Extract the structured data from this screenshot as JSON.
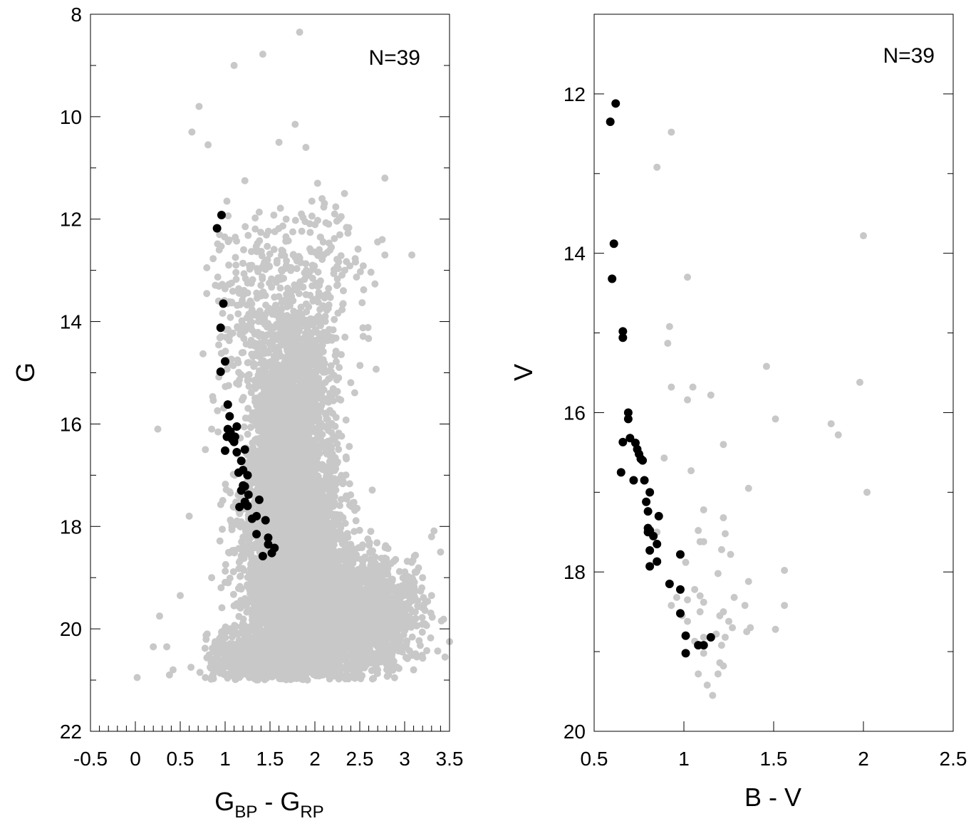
{
  "chart_data": [
    {
      "type": "scatter",
      "title": "",
      "xlabel": "G",
      "xlabel_sub1": "BP",
      "xlabel_mid": " - ",
      "xlabel_main2": "G",
      "xlabel_sub2": "RP",
      "ylabel": "G",
      "xlim": [
        -0.5,
        3.5
      ],
      "ylim": [
        22,
        8
      ],
      "y_inverted": true,
      "x_major_ticks": [
        -0.5,
        0,
        0.5,
        1,
        1.5,
        2,
        2.5,
        3,
        3.5
      ],
      "x_tick_labels": [
        "-0.5",
        "0",
        "0.5",
        "1",
        "1.5",
        "2",
        "2.5",
        "3",
        "3.5"
      ],
      "x_minor_step": 0.1,
      "y_major_ticks": [
        8,
        10,
        12,
        14,
        16,
        18,
        20,
        22
      ],
      "y_tick_labels": [
        "8",
        "10",
        "12",
        "14",
        "16",
        "18",
        "20",
        "22"
      ],
      "y_minor_ticks": [
        9,
        11,
        13,
        15,
        17,
        19,
        21
      ],
      "annotation": "N=39",
      "grid": false,
      "field_color": "#c8c8c8",
      "member_color": "#000000",
      "field_stars_sample": [
        [
          1.83,
          8.35
        ],
        [
          1.42,
          8.78
        ],
        [
          1.1,
          9.0
        ],
        [
          0.71,
          9.8
        ],
        [
          0.63,
          10.3
        ],
        [
          0.81,
          10.55
        ],
        [
          1.78,
          10.15
        ],
        [
          1.9,
          10.6
        ],
        [
          1.6,
          10.5
        ],
        [
          1.22,
          11.25
        ],
        [
          2.03,
          11.3
        ],
        [
          2.33,
          11.5
        ],
        [
          2.78,
          11.2
        ],
        [
          2.08,
          11.6
        ],
        [
          2.22,
          11.9
        ],
        [
          2.27,
          12.0
        ],
        [
          1.85,
          11.9
        ],
        [
          1.68,
          12.0
        ],
        [
          1.02,
          11.65
        ],
        [
          3.08,
          12.7
        ],
        [
          2.78,
          12.7
        ],
        [
          2.75,
          12.4
        ],
        [
          0.25,
          16.1
        ],
        [
          0.6,
          17.8
        ],
        [
          0.5,
          19.35
        ],
        [
          0.27,
          19.75
        ],
        [
          0.2,
          20.35
        ],
        [
          0.35,
          20.35
        ],
        [
          0.42,
          20.8
        ],
        [
          0.38,
          20.9
        ],
        [
          0.02,
          20.95
        ],
        [
          3.3,
          19.35
        ],
        [
          3.5,
          20.25
        ],
        [
          3.45,
          20.55
        ],
        [
          3.4,
          18.5
        ],
        [
          3.3,
          18.2
        ],
        [
          3.2,
          19.0
        ],
        [
          3.05,
          19.5
        ],
        [
          2.93,
          19.4
        ],
        [
          2.62,
          20.0
        ],
        [
          2.82,
          20.9
        ],
        [
          3.1,
          20.8
        ],
        [
          0.8,
          20.1
        ],
        [
          0.62,
          20.75
        ],
        [
          0.72,
          20.85
        ],
        [
          0.78,
          20.95
        ],
        [
          1.05,
          20.0
        ],
        [
          1.3,
          19.7
        ],
        [
          0.85,
          19.0
        ],
        [
          0.78,
          16.5
        ],
        [
          0.85,
          16.1
        ]
      ],
      "members": [
        [
          0.96,
          11.92
        ],
        [
          0.91,
          12.18
        ],
        [
          0.98,
          13.65
        ],
        [
          0.95,
          14.12
        ],
        [
          1.0,
          14.78
        ],
        [
          0.95,
          14.98
        ],
        [
          1.03,
          15.62
        ],
        [
          1.05,
          15.85
        ],
        [
          1.13,
          16.05
        ],
        [
          1.03,
          16.1
        ],
        [
          1.06,
          16.15
        ],
        [
          1.11,
          16.25
        ],
        [
          1.1,
          16.35
        ],
        [
          1.13,
          16.55
        ],
        [
          1.0,
          16.52
        ],
        [
          1.22,
          16.5
        ],
        [
          1.18,
          16.72
        ],
        [
          1.2,
          16.9
        ],
        [
          1.25,
          17.0
        ],
        [
          1.2,
          17.2
        ],
        [
          1.22,
          17.22
        ],
        [
          1.18,
          17.3
        ],
        [
          1.26,
          17.38
        ],
        [
          1.22,
          17.52
        ],
        [
          1.16,
          17.62
        ],
        [
          1.38,
          17.48
        ],
        [
          1.35,
          17.8
        ],
        [
          1.45,
          17.88
        ],
        [
          1.35,
          18.15
        ],
        [
          1.48,
          18.35
        ],
        [
          1.55,
          18.42
        ],
        [
          1.42,
          18.58
        ],
        [
          1.52,
          18.52
        ],
        [
          1.48,
          18.22
        ],
        [
          1.3,
          17.85
        ],
        [
          1.15,
          16.95
        ],
        [
          1.25,
          17.6
        ],
        [
          1.02,
          16.25
        ],
        [
          1.08,
          16.3
        ]
      ]
    },
    {
      "type": "scatter",
      "title": "",
      "xlabel": "B - V",
      "ylabel": "V",
      "xlim": [
        0.5,
        2.5
      ],
      "ylim": [
        20,
        11
      ],
      "y_inverted": true,
      "x_major_ticks": [
        0.5,
        1,
        1.5,
        2,
        2.5
      ],
      "x_tick_labels": [
        "0.5",
        "1",
        "1.5",
        "2",
        "2.5"
      ],
      "y_major_ticks": [
        12,
        14,
        16,
        18,
        20
      ],
      "y_tick_labels": [
        "12",
        "14",
        "16",
        "18",
        "20"
      ],
      "y_minor_ticks": [
        11,
        13,
        15,
        17,
        19
      ],
      "annotation": "N=39",
      "grid": false,
      "field_color": "#c8c8c8",
      "member_color": "#000000",
      "field_stars": [
        [
          0.93,
          12.48
        ],
        [
          0.85,
          12.92
        ],
        [
          2.0,
          13.78
        ],
        [
          1.02,
          14.3
        ],
        [
          0.92,
          14.92
        ],
        [
          0.91,
          15.13
        ],
        [
          1.46,
          15.42
        ],
        [
          0.93,
          15.68
        ],
        [
          1.05,
          15.68
        ],
        [
          1.02,
          15.84
        ],
        [
          1.15,
          15.78
        ],
        [
          1.98,
          15.62
        ],
        [
          1.51,
          16.08
        ],
        [
          1.82,
          16.14
        ],
        [
          1.86,
          16.28
        ],
        [
          1.22,
          16.4
        ],
        [
          0.89,
          16.57
        ],
        [
          1.04,
          16.73
        ],
        [
          1.36,
          16.95
        ],
        [
          2.02,
          17.0
        ],
        [
          1.11,
          17.22
        ],
        [
          1.22,
          17.32
        ],
        [
          1.08,
          17.48
        ],
        [
          1.23,
          17.52
        ],
        [
          1.09,
          17.62
        ],
        [
          1.11,
          17.62
        ],
        [
          1.21,
          17.72
        ],
        [
          1.26,
          17.78
        ],
        [
          1.01,
          17.88
        ],
        [
          1.19,
          18.02
        ],
        [
          1.56,
          17.98
        ],
        [
          1.36,
          18.12
        ],
        [
          1.06,
          18.22
        ],
        [
          1.09,
          18.3
        ],
        [
          1.28,
          18.32
        ],
        [
          1.02,
          18.35
        ],
        [
          1.11,
          18.38
        ],
        [
          1.34,
          18.42
        ],
        [
          1.56,
          18.42
        ],
        [
          1.09,
          18.5
        ],
        [
          1.22,
          18.5
        ],
        [
          1.2,
          18.55
        ],
        [
          1.02,
          18.62
        ],
        [
          1.25,
          18.62
        ],
        [
          1.27,
          18.7
        ],
        [
          1.37,
          18.7
        ],
        [
          1.35,
          18.75
        ],
        [
          1.51,
          18.72
        ],
        [
          1.18,
          18.78
        ],
        [
          1.23,
          18.82
        ],
        [
          1.11,
          18.82
        ],
        [
          1.06,
          18.87
        ],
        [
          1.21,
          18.92
        ],
        [
          1.11,
          19.02
        ],
        [
          1.2,
          19.14
        ],
        [
          1.22,
          19.18
        ],
        [
          1.08,
          19.28
        ],
        [
          1.19,
          19.28
        ],
        [
          1.13,
          19.42
        ],
        [
          1.16,
          19.55
        ],
        [
          0.93,
          18.42
        ],
        [
          0.96,
          18.32
        ],
        [
          0.99,
          18.55
        ],
        [
          0.85,
          17.5
        ]
      ],
      "members": [
        [
          0.62,
          12.12
        ],
        [
          0.59,
          12.35
        ],
        [
          0.61,
          13.88
        ],
        [
          0.6,
          14.32
        ],
        [
          0.66,
          14.98
        ],
        [
          0.66,
          15.06
        ],
        [
          0.69,
          16.0
        ],
        [
          0.69,
          16.08
        ],
        [
          0.7,
          16.32
        ],
        [
          0.66,
          16.37
        ],
        [
          0.73,
          16.38
        ],
        [
          0.74,
          16.46
        ],
        [
          0.75,
          16.52
        ],
        [
          0.76,
          16.58
        ],
        [
          0.65,
          16.75
        ],
        [
          0.72,
          16.85
        ],
        [
          0.78,
          16.85
        ],
        [
          0.81,
          17.0
        ],
        [
          0.79,
          17.12
        ],
        [
          0.8,
          17.24
        ],
        [
          0.86,
          17.3
        ],
        [
          0.8,
          17.45
        ],
        [
          0.81,
          17.48
        ],
        [
          0.83,
          17.55
        ],
        [
          0.85,
          17.65
        ],
        [
          0.81,
          17.73
        ],
        [
          0.98,
          17.78
        ],
        [
          0.85,
          17.87
        ],
        [
          0.81,
          17.93
        ],
        [
          0.92,
          18.15
        ],
        [
          0.98,
          18.22
        ],
        [
          0.98,
          18.52
        ],
        [
          1.01,
          18.8
        ],
        [
          1.15,
          18.82
        ],
        [
          1.08,
          18.92
        ],
        [
          1.11,
          18.92
        ],
        [
          1.01,
          19.02
        ],
        [
          0.8,
          17.5
        ],
        [
          0.77,
          16.6
        ]
      ]
    }
  ]
}
